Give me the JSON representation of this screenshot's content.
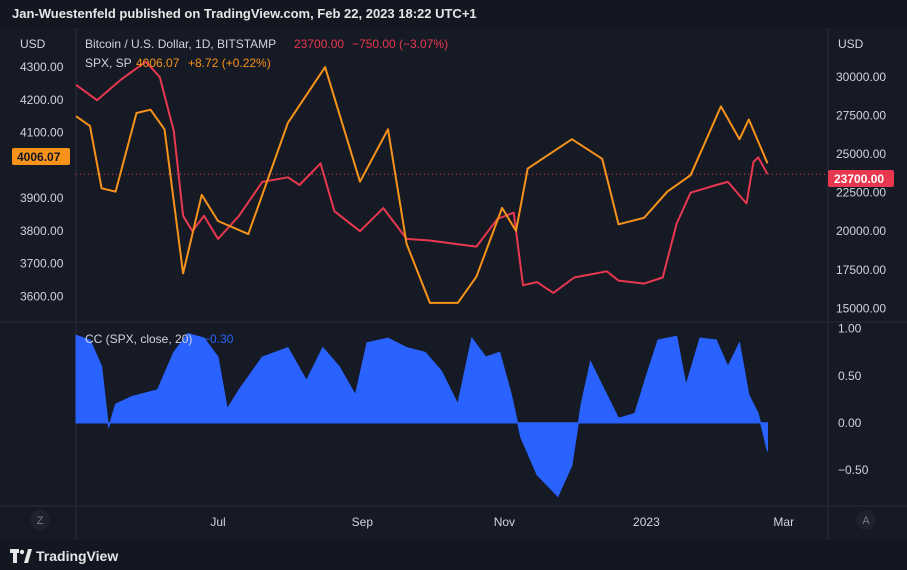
{
  "header": {
    "text": "Jan-Wuestenfeld published on TradingView.com, Feb 22, 2023 18:22 UTC+1"
  },
  "footer": {
    "brand": "TradingView",
    "logo_icon": "tradingview-logo-icon"
  },
  "colors": {
    "background": "#161a25",
    "btc_line": "#e8384f",
    "spx_line": "#f7931a",
    "cc_fill": "#2962ff",
    "grid": "#2a2e39",
    "axis_text": "#d1d4dc"
  },
  "legend": {
    "btc": {
      "title": "Bitcoin / U.S. Dollar, 1D, BITSTAMP",
      "value": "23700.00",
      "change": "−750.00 (−3.07%)"
    },
    "spx": {
      "title": "SPX, SP",
      "value": "4006.07",
      "change": "+8.72 (+0.22%)"
    },
    "cc": {
      "title": "CC (SPX, close, 20)",
      "value": "−0.30"
    }
  },
  "axes": {
    "left_unit": "USD",
    "right_unit": "USD",
    "left_ticks": [
      "4300.00",
      "4200.00",
      "4100.00",
      "3900.00",
      "3800.00",
      "3700.00",
      "3600.00"
    ],
    "right_ticks": [
      "30000.00",
      "27500.00",
      "25000.00",
      "22500.00",
      "20000.00",
      "17500.00",
      "15000.00"
    ],
    "cc_ticks": [
      "1.00",
      "0.50",
      "0.00",
      "−0.50"
    ],
    "x_labels": [
      "Jul",
      "Sep",
      "Nov",
      "2023",
      "Mar"
    ],
    "left_price_tag": "4006.07",
    "right_price_tag": "23700.00",
    "corner_left": "Z",
    "corner_right": "A"
  },
  "chart_data": [
    {
      "type": "line",
      "series": [
        {
          "name": "Bitcoin / U.S. Dollar, 1D, BITSTAMP",
          "axis": "right",
          "values": [
            {
              "x": "2022-05-01",
              "y": 29500
            },
            {
              "x": "2022-05-10",
              "y": 28500
            },
            {
              "x": "2022-05-20",
              "y": 29800
            },
            {
              "x": "2022-05-31",
              "y": 31000
            },
            {
              "x": "2022-06-06",
              "y": 30000
            },
            {
              "x": "2022-06-12",
              "y": 26500
            },
            {
              "x": "2022-06-16",
              "y": 21000
            },
            {
              "x": "2022-06-20",
              "y": 20000
            },
            {
              "x": "2022-06-25",
              "y": 21000
            },
            {
              "x": "2022-07-01",
              "y": 19500
            },
            {
              "x": "2022-07-10",
              "y": 21000
            },
            {
              "x": "2022-07-20",
              "y": 23200
            },
            {
              "x": "2022-07-31",
              "y": 23500
            },
            {
              "x": "2022-08-05",
              "y": 23000
            },
            {
              "x": "2022-08-14",
              "y": 24400
            },
            {
              "x": "2022-08-20",
              "y": 21300
            },
            {
              "x": "2022-08-31",
              "y": 20000
            },
            {
              "x": "2022-09-10",
              "y": 21500
            },
            {
              "x": "2022-09-20",
              "y": 19500
            },
            {
              "x": "2022-09-30",
              "y": 19400
            },
            {
              "x": "2022-10-10",
              "y": 19200
            },
            {
              "x": "2022-10-20",
              "y": 19000
            },
            {
              "x": "2022-10-29",
              "y": 20800
            },
            {
              "x": "2022-11-05",
              "y": 21200
            },
            {
              "x": "2022-11-09",
              "y": 16500
            },
            {
              "x": "2022-11-15",
              "y": 16700
            },
            {
              "x": "2022-11-22",
              "y": 16000
            },
            {
              "x": "2022-12-01",
              "y": 17000
            },
            {
              "x": "2022-12-15",
              "y": 17400
            },
            {
              "x": "2022-12-20",
              "y": 16800
            },
            {
              "x": "2022-12-31",
              "y": 16600
            },
            {
              "x": "2023-01-08",
              "y": 17000
            },
            {
              "x": "2023-01-14",
              "y": 20500
            },
            {
              "x": "2023-01-20",
              "y": 22500
            },
            {
              "x": "2023-01-31",
              "y": 23000
            },
            {
              "x": "2023-02-05",
              "y": 23200
            },
            {
              "x": "2023-02-13",
              "y": 21800
            },
            {
              "x": "2023-02-16",
              "y": 24500
            },
            {
              "x": "2023-02-18",
              "y": 24800
            },
            {
              "x": "2023-02-22",
              "y": 23700
            }
          ]
        },
        {
          "name": "SPX, SP",
          "axis": "left",
          "values": [
            {
              "x": "2022-05-01",
              "y": 4150
            },
            {
              "x": "2022-05-07",
              "y": 4120
            },
            {
              "x": "2022-05-12",
              "y": 3930
            },
            {
              "x": "2022-05-18",
              "y": 3920
            },
            {
              "x": "2022-05-27",
              "y": 4160
            },
            {
              "x": "2022-06-02",
              "y": 4170
            },
            {
              "x": "2022-06-08",
              "y": 4110
            },
            {
              "x": "2022-06-16",
              "y": 3670
            },
            {
              "x": "2022-06-24",
              "y": 3910
            },
            {
              "x": "2022-07-01",
              "y": 3830
            },
            {
              "x": "2022-07-14",
              "y": 3790
            },
            {
              "x": "2022-07-31",
              "y": 4130
            },
            {
              "x": "2022-08-16",
              "y": 4300
            },
            {
              "x": "2022-08-31",
              "y": 3950
            },
            {
              "x": "2022-09-12",
              "y": 4110
            },
            {
              "x": "2022-09-20",
              "y": 3760
            },
            {
              "x": "2022-09-30",
              "y": 3580
            },
            {
              "x": "2022-10-12",
              "y": 3580
            },
            {
              "x": "2022-10-20",
              "y": 3660
            },
            {
              "x": "2022-10-31",
              "y": 3870
            },
            {
              "x": "2022-11-06",
              "y": 3800
            },
            {
              "x": "2022-11-11",
              "y": 3990
            },
            {
              "x": "2022-11-30",
              "y": 4080
            },
            {
              "x": "2022-12-13",
              "y": 4020
            },
            {
              "x": "2022-12-20",
              "y": 3820
            },
            {
              "x": "2022-12-31",
              "y": 3840
            },
            {
              "x": "2023-01-10",
              "y": 3920
            },
            {
              "x": "2023-01-20",
              "y": 3970
            },
            {
              "x": "2023-02-02",
              "y": 4180
            },
            {
              "x": "2023-02-10",
              "y": 4080
            },
            {
              "x": "2023-02-14",
              "y": 4140
            },
            {
              "x": "2023-02-22",
              "y": 4006
            }
          ]
        }
      ],
      "xlim": [
        "2022-05-01",
        "2023-03-20"
      ],
      "ylim_left": [
        3540,
        4340
      ],
      "ylim_right": [
        14500,
        31500
      ],
      "grid": false,
      "legend": "top-left"
    },
    {
      "type": "area",
      "series": [
        {
          "name": "CC (SPX, close, 20)",
          "values": [
            {
              "x": "2022-05-01",
              "y": 0.93
            },
            {
              "x": "2022-05-07",
              "y": 0.88
            },
            {
              "x": "2022-05-12",
              "y": 0.6
            },
            {
              "x": "2022-05-15",
              "y": -0.05
            },
            {
              "x": "2022-05-18",
              "y": 0.2
            },
            {
              "x": "2022-05-25",
              "y": 0.28
            },
            {
              "x": "2022-06-05",
              "y": 0.35
            },
            {
              "x": "2022-06-12",
              "y": 0.75
            },
            {
              "x": "2022-06-18",
              "y": 0.95
            },
            {
              "x": "2022-06-25",
              "y": 0.9
            },
            {
              "x": "2022-07-01",
              "y": 0.7
            },
            {
              "x": "2022-07-05",
              "y": 0.15
            },
            {
              "x": "2022-07-10",
              "y": 0.35
            },
            {
              "x": "2022-07-20",
              "y": 0.7
            },
            {
              "x": "2022-07-31",
              "y": 0.8
            },
            {
              "x": "2022-08-08",
              "y": 0.45
            },
            {
              "x": "2022-08-15",
              "y": 0.8
            },
            {
              "x": "2022-08-22",
              "y": 0.6
            },
            {
              "x": "2022-08-29",
              "y": 0.3
            },
            {
              "x": "2022-09-03",
              "y": 0.85
            },
            {
              "x": "2022-09-12",
              "y": 0.9
            },
            {
              "x": "2022-09-20",
              "y": 0.8
            },
            {
              "x": "2022-09-28",
              "y": 0.75
            },
            {
              "x": "2022-10-05",
              "y": 0.55
            },
            {
              "x": "2022-10-12",
              "y": 0.2
            },
            {
              "x": "2022-10-18",
              "y": 0.9
            },
            {
              "x": "2022-10-24",
              "y": 0.7
            },
            {
              "x": "2022-10-30",
              "y": 0.75
            },
            {
              "x": "2022-11-04",
              "y": 0.3
            },
            {
              "x": "2022-11-08",
              "y": -0.15
            },
            {
              "x": "2022-11-15",
              "y": -0.55
            },
            {
              "x": "2022-11-24",
              "y": -0.78
            },
            {
              "x": "2022-11-30",
              "y": -0.45
            },
            {
              "x": "2022-12-04",
              "y": 0.2
            },
            {
              "x": "2022-12-08",
              "y": 0.65
            },
            {
              "x": "2022-12-15",
              "y": 0.3
            },
            {
              "x": "2022-12-20",
              "y": 0.05
            },
            {
              "x": "2022-12-27",
              "y": 0.1
            },
            {
              "x": "2023-01-01",
              "y": 0.5
            },
            {
              "x": "2023-01-06",
              "y": 0.88
            },
            {
              "x": "2023-01-14",
              "y": 0.92
            },
            {
              "x": "2023-01-18",
              "y": 0.4
            },
            {
              "x": "2023-01-24",
              "y": 0.9
            },
            {
              "x": "2023-01-31",
              "y": 0.88
            },
            {
              "x": "2023-02-05",
              "y": 0.6
            },
            {
              "x": "2023-02-10",
              "y": 0.85
            },
            {
              "x": "2023-02-14",
              "y": 0.3
            },
            {
              "x": "2023-02-18",
              "y": 0.1
            },
            {
              "x": "2023-02-22",
              "y": -0.3
            }
          ]
        }
      ],
      "xlim": [
        "2022-05-01",
        "2023-03-20"
      ],
      "ylim": [
        -0.85,
        1.05
      ],
      "grid": false
    }
  ]
}
